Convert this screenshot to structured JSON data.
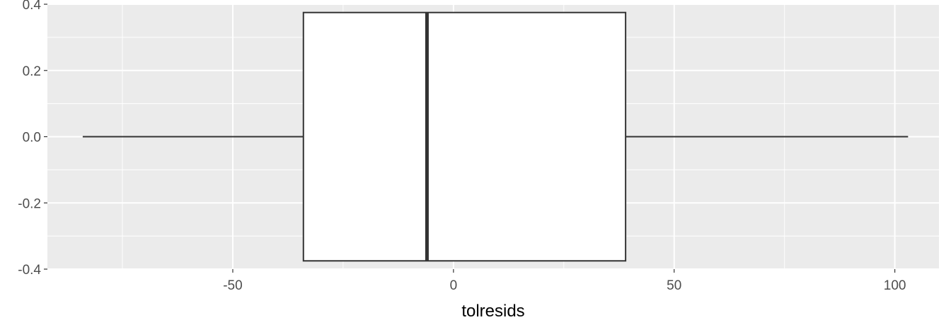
{
  "chart_data": {
    "type": "boxplot",
    "title": "",
    "xlabel": "tolresids",
    "ylabel": "",
    "xlim": [
      -92,
      110
    ],
    "ylim": [
      -0.4,
      0.4
    ],
    "x_ticks": [
      -50,
      0,
      50,
      100
    ],
    "x_tick_labels": [
      "-50",
      "0",
      "50",
      "100"
    ],
    "x_minor_ticks": [
      -75,
      -25,
      25,
      75
    ],
    "y_ticks": [
      -0.4,
      -0.2,
      0.0,
      0.2,
      0.4
    ],
    "y_tick_labels": [
      "-0.4",
      "-0.2",
      "0.0",
      "0.2",
      "0.4"
    ],
    "y_minor_ticks": [
      -0.3,
      -0.1,
      0.1,
      0.3
    ],
    "grid": true,
    "orientation": "horizontal",
    "box": {
      "whisker_low": -84,
      "q1": -34,
      "median": -6,
      "q3": 39,
      "whisker_high": 103,
      "y_center": 0.0,
      "y_half_height": 0.375
    },
    "colors": {
      "panel": "#ebebeb",
      "grid": "#ffffff",
      "box_fill": "#ffffff",
      "box_line": "#333333",
      "tick_label": "#4d4d4d"
    }
  }
}
